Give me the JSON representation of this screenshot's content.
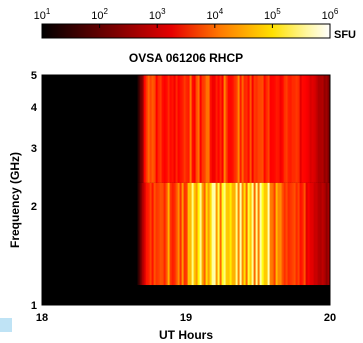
{
  "colorbar": {
    "tick_labels": [
      {
        "base": "10",
        "exp": "1"
      },
      {
        "base": "10",
        "exp": "2"
      },
      {
        "base": "10",
        "exp": "3"
      },
      {
        "base": "10",
        "exp": "4"
      },
      {
        "base": "10",
        "exp": "5"
      },
      {
        "base": "10",
        "exp": "6"
      }
    ],
    "unit": "SFU",
    "range_log10": [
      1,
      6
    ],
    "colormap": "hot"
  },
  "chart_data": {
    "type": "heatmap",
    "title": "OVSA 061206 RHCP",
    "xlabel": "UT Hours",
    "ylabel": "Frequency (GHz)",
    "xlim": [
      18,
      20
    ],
    "ylim": [
      1,
      5
    ],
    "yscale": "log",
    "x_ticks": [
      "18",
      "19",
      "20"
    ],
    "y_ticks": [
      "1",
      "2",
      "3",
      "4",
      "5"
    ],
    "colorbar_unit": "SFU",
    "z_scale": "log",
    "z_range_log10": [
      1,
      6
    ],
    "burst_start_ut": 18.65,
    "upper_band_ghz": [
      2.35,
      5
    ],
    "lower_band_ghz": [
      1.15,
      2.35
    ],
    "peak_window_ut": [
      19.0,
      19.6
    ]
  }
}
